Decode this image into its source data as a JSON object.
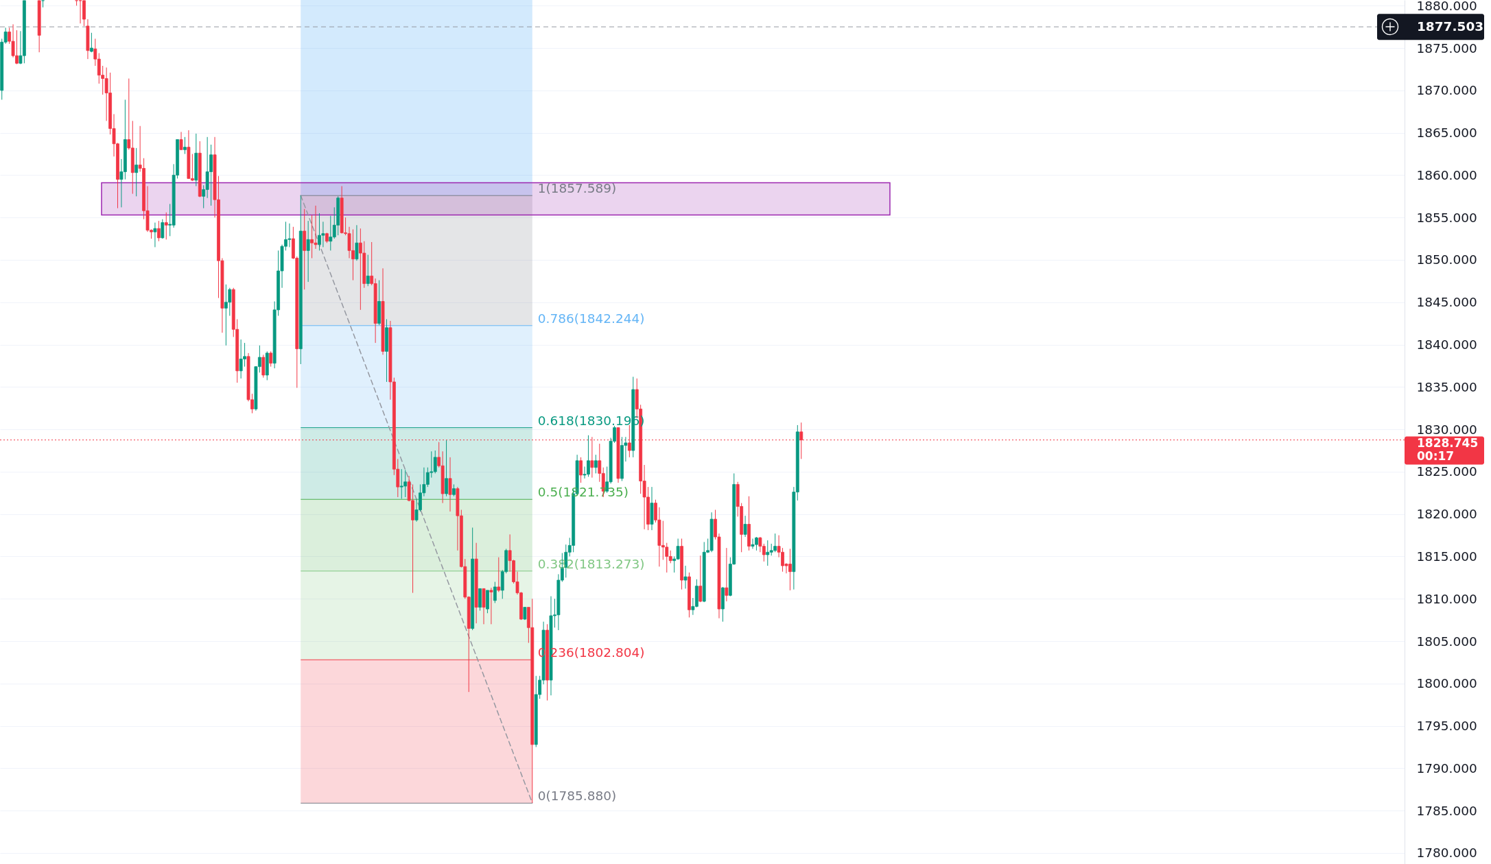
{
  "chart_data": {
    "type": "candlestick",
    "categories": [
      null,
      null,
      null,
      null,
      null,
      null,
      null,
      null,
      null,
      null,
      null,
      null,
      null,
      null,
      null,
      null,
      null,
      null,
      null,
      null,
      null,
      null,
      null,
      null,
      null,
      null,
      null,
      null,
      null,
      null,
      null,
      null,
      null,
      null,
      null,
      null,
      null,
      null,
      null,
      null,
      null,
      null,
      null,
      null,
      null,
      null,
      null,
      null,
      null,
      null,
      null,
      null,
      null,
      null,
      null,
      null,
      null,
      null,
      null,
      null,
      null,
      null,
      null,
      null,
      null,
      null,
      null,
      null,
      null,
      null,
      null,
      null,
      null,
      null,
      null,
      null,
      null,
      null,
      null,
      null,
      null,
      null,
      null,
      null,
      null,
      null,
      null,
      null,
      null,
      null,
      null,
      null,
      null,
      null,
      null,
      null,
      null,
      null,
      null,
      null,
      null,
      null,
      null,
      null,
      null,
      null,
      null,
      null,
      null,
      null,
      null,
      null,
      null,
      null,
      null,
      null,
      null,
      null,
      null,
      null,
      null,
      null,
      null,
      null,
      null,
      null,
      null,
      null,
      null,
      null,
      null,
      null,
      null,
      null,
      null,
      null,
      null,
      null,
      null,
      null,
      null,
      null,
      null,
      null,
      null,
      null,
      null,
      null,
      null,
      null,
      null,
      null,
      null,
      null,
      null,
      null,
      null,
      null,
      null,
      null,
      null,
      null,
      null,
      null,
      null,
      null,
      null,
      null,
      null,
      null,
      null,
      null,
      null,
      null,
      null,
      null,
      null,
      null,
      null,
      null,
      null,
      null,
      null,
      null,
      null,
      null,
      null,
      null,
      null,
      null,
      null,
      null,
      null,
      null,
      null,
      null,
      null,
      null,
      null,
      null,
      null,
      null,
      null,
      null,
      null,
      null,
      null,
      null,
      null,
      null,
      null,
      null,
      null,
      null,
      null,
      null,
      null,
      null,
      null,
      null,
      null,
      null,
      null,
      null,
      null,
      null,
      null,
      null,
      null,
      null,
      null,
      null,
      null,
      null,
      null,
      null,
      null,
      null,
      null,
      null,
      null,
      null,
      null,
      null,
      null,
      null,
      null,
      null,
      null,
      null,
      null,
      null,
      null,
      null,
      null,
      null,
      null,
      null,
      null,
      null,
      null,
      null,
      null,
      null,
      null,
      null,
      null,
      null,
      null,
      null,
      null,
      null,
      null,
      null,
      null,
      null,
      null,
      null,
      null,
      null,
      null,
      null,
      null,
      null,
      null,
      null,
      null,
      null,
      null,
      null,
      null,
      null,
      null,
      null,
      null,
      null,
      null,
      null,
      null,
      null,
      null,
      null,
      null,
      null,
      null,
      null,
      null,
      null,
      null,
      null,
      null,
      null,
      null,
      null,
      null,
      null,
      null,
      null,
      null,
      null,
      null,
      null,
      null,
      null,
      null,
      null,
      null,
      null,
      null,
      null,
      null,
      null,
      null,
      null,
      null,
      null,
      null,
      null,
      null,
      null,
      null,
      null,
      null,
      null,
      null,
      null,
      null,
      null,
      null,
      null,
      null,
      null,
      null,
      null,
      null,
      null,
      null,
      null,
      null,
      null,
      null,
      null,
      null,
      null,
      null,
      null,
      null,
      null,
      null,
      null,
      null,
      null,
      null,
      null,
      null,
      null
    ],
    "ohlc": [
      [
        1870.0,
        1876.1,
        1868.9,
        1875.7
      ],
      [
        1875.7,
        1877.4,
        1875.5,
        1876.9
      ],
      [
        1876.9,
        1877.4,
        1875.5,
        1875.8
      ],
      [
        1875.8,
        1877.8,
        1873.9,
        1874.1
      ],
      [
        1874.1,
        1877.1,
        1873.1,
        1873.2
      ],
      [
        1873.2,
        1877.0,
        1873.1,
        1874.1
      ],
      [
        1874.1,
        1880.6,
        1873.2,
        1880.6
      ],
      null,
      null,
      null,
      [
        1880.6,
        1880.6,
        1874.5,
        1876.5
      ],
      [
        1880.6,
        1880.6,
        1879.8,
        1880.6
      ],
      null,
      null,
      null,
      null,
      null,
      null,
      null,
      null,
      [
        1880.6,
        1880.6,
        1880.0,
        1880.6
      ],
      [
        1880.6,
        1880.6,
        1877.9,
        1880.6
      ],
      [
        1880.6,
        1880.6,
        1877.6,
        1878.4
      ],
      [
        1877.6,
        1878.4,
        1873.7,
        1874.7
      ],
      [
        1874.6,
        1876.8,
        1874.5,
        1875.0
      ],
      [
        1874.9,
        1876.1,
        1872.9,
        1873.7
      ],
      [
        1873.7,
        1874.4,
        1870.8,
        1871.8
      ],
      [
        1871.8,
        1872.9,
        1869.5,
        1871.4
      ],
      [
        1871.4,
        1872.7,
        1866.4,
        1869.7
      ],
      [
        1869.7,
        1872.1,
        1864.8,
        1865.5
      ],
      [
        1865.5,
        1867.2,
        1862.2,
        1863.7
      ],
      [
        1863.7,
        1863.8,
        1856.1,
        1859.5
      ],
      [
        1859.5,
        1861.9,
        1856.2,
        1860.4
      ],
      [
        1860.4,
        1868.9,
        1859.5,
        1864.2
      ],
      [
        1864.2,
        1871.4,
        1863.0,
        1863.2
      ],
      [
        1863.2,
        1866.4,
        1857.8,
        1860.3
      ],
      [
        1860.3,
        1863.2,
        1857.5,
        1861.2
      ],
      [
        1861.2,
        1865.8,
        1860.4,
        1860.8
      ],
      [
        1860.8,
        1862.0,
        1854.8,
        1855.8
      ],
      [
        1855.8,
        1858.7,
        1853.3,
        1853.5
      ],
      [
        1853.5,
        1853.6,
        1852.5,
        1853.3
      ],
      [
        1853.3,
        1854.4,
        1851.5,
        1853.7
      ],
      [
        1853.7,
        1854.6,
        1852.2,
        1852.6
      ],
      [
        1852.6,
        1854.8,
        1852.5,
        1854.4
      ],
      [
        1854.4,
        1855.6,
        1852.4,
        1854.1
      ],
      [
        1854.1,
        1856.6,
        1852.8,
        1854.2
      ],
      [
        1854.1,
        1861.3,
        1853.8,
        1860.0
      ],
      [
        1860.0,
        1864.2,
        1859.6,
        1864.2
      ],
      [
        1864.2,
        1865.1,
        1863.0,
        1863.0
      ],
      [
        1863.0,
        1864.5,
        1862.5,
        1863.3
      ],
      [
        1863.3,
        1865.3,
        1859.6,
        1859.6
      ],
      [
        1859.6,
        1862.5,
        1859.3,
        1859.4
      ],
      [
        1859.4,
        1864.9,
        1858.7,
        1862.6
      ],
      [
        1862.6,
        1864.0,
        1857.4,
        1857.5
      ],
      [
        1857.5,
        1858.8,
        1856.1,
        1858.3
      ],
      [
        1858.3,
        1864.5,
        1857.3,
        1860.4
      ],
      [
        1860.4,
        1863.6,
        1856.4,
        1862.4
      ],
      [
        1862.4,
        1864.5,
        1855.0,
        1857.1
      ],
      [
        1857.1,
        1859.9,
        1845.5,
        1849.9
      ],
      [
        1849.9,
        1850.2,
        1841.4,
        1844.3
      ],
      [
        1844.3,
        1847.1,
        1839.9,
        1845.0
      ],
      [
        1845.0,
        1846.7,
        1843.4,
        1846.5
      ],
      [
        1846.5,
        1846.7,
        1840.9,
        1841.8
      ],
      [
        1841.8,
        1843.0,
        1835.5,
        1836.9
      ],
      [
        1836.9,
        1840.6,
        1836.0,
        1838.3
      ],
      [
        1838.3,
        1840.2,
        1837.4,
        1838.6
      ],
      [
        1838.6,
        1839.0,
        1833.3,
        1833.5
      ],
      [
        1833.5,
        1834.2,
        1831.9,
        1832.4
      ],
      [
        1832.4,
        1837.4,
        1832.2,
        1837.4
      ],
      [
        1837.4,
        1839.9,
        1836.7,
        1838.5
      ],
      [
        1838.5,
        1838.8,
        1836.1,
        1836.4
      ],
      [
        1836.4,
        1839.2,
        1835.8,
        1839.0
      ],
      [
        1839.0,
        1839.2,
        1837.4,
        1837.8
      ],
      [
        1837.8,
        1845.1,
        1837.2,
        1844.1
      ],
      [
        1844.1,
        1851.1,
        1843.4,
        1848.7
      ],
      [
        1848.7,
        1851.8,
        1846.7,
        1851.6
      ],
      [
        1851.6,
        1854.5,
        1851.1,
        1852.4
      ],
      [
        1852.4,
        1854.3,
        1851.5,
        1852.5
      ],
      [
        1852.5,
        1853.9,
        1850.1,
        1850.2
      ],
      [
        1850.2,
        1850.4,
        1834.9,
        1839.5
      ],
      [
        1839.5,
        1857.6,
        1837.7,
        1853.4
      ],
      [
        1853.4,
        1856.0,
        1846.5,
        1851.1
      ],
      [
        1851.1,
        1854.6,
        1847.4,
        1852.4
      ],
      [
        1852.4,
        1855.3,
        1850.2,
        1852.0
      ],
      [
        1852.0,
        1856.4,
        1851.3,
        1851.8
      ],
      [
        1851.8,
        1855.5,
        1851.1,
        1852.9
      ],
      [
        1852.9,
        1854.5,
        1851.5,
        1853.1
      ],
      [
        1853.1,
        1853.2,
        1852.0,
        1852.2
      ],
      [
        1852.2,
        1855.2,
        1851.1,
        1852.7
      ],
      [
        1852.7,
        1856.2,
        1852.5,
        1854.1
      ],
      [
        1854.1,
        1857.5,
        1852.9,
        1857.3
      ],
      [
        1857.3,
        1858.7,
        1853.1,
        1853.2
      ],
      [
        1853.2,
        1855.0,
        1852.9,
        1853.1
      ],
      [
        1853.1,
        1853.9,
        1850.2,
        1851.1
      ],
      [
        1851.1,
        1853.6,
        1847.6,
        1850.1
      ],
      [
        1850.1,
        1854.1,
        1849.9,
        1852.0
      ],
      [
        1852.0,
        1853.7,
        1844.1,
        1850.8
      ],
      [
        1850.8,
        1852.2,
        1846.7,
        1847.2
      ],
      [
        1847.2,
        1850.6,
        1846.9,
        1848.1
      ],
      [
        1848.1,
        1852.1,
        1847.0,
        1847.2
      ],
      [
        1847.2,
        1847.8,
        1840.2,
        1842.5
      ],
      [
        1842.5,
        1847.6,
        1842.3,
        1845.1
      ],
      [
        1845.1,
        1849.0,
        1838.8,
        1839.2
      ],
      [
        1839.2,
        1843.0,
        1835.6,
        1842.0
      ],
      [
        1842.0,
        1842.8,
        1833.5,
        1835.6
      ],
      [
        1835.6,
        1836.1,
        1824.6,
        1825.3
      ],
      [
        1825.3,
        1826.5,
        1822.0,
        1823.2
      ],
      [
        1823.2,
        1825.3,
        1821.8,
        1823.3
      ],
      [
        1823.3,
        1825.2,
        1822.0,
        1823.8
      ],
      [
        1823.8,
        1824.5,
        1821.5,
        1821.6
      ],
      [
        1821.6,
        1823.5,
        1810.7,
        1819.3
      ],
      [
        1819.3,
        1821.8,
        1819.1,
        1820.5
      ],
      [
        1820.5,
        1823.5,
        1820.3,
        1822.5
      ],
      [
        1822.5,
        1825.5,
        1822.1,
        1823.5
      ],
      [
        1823.5,
        1825.5,
        1823.2,
        1824.9
      ],
      [
        1824.9,
        1827.4,
        1824.3,
        1825.0
      ],
      [
        1825.0,
        1827.5,
        1824.8,
        1826.7
      ],
      [
        1826.7,
        1828.5,
        1825.5,
        1825.7
      ],
      [
        1825.7,
        1827.4,
        1821.3,
        1822.4
      ],
      [
        1822.4,
        1828.7,
        1822.1,
        1824.2
      ],
      [
        1824.2,
        1826.7,
        1820.3,
        1822.3
      ],
      [
        1822.3,
        1823.5,
        1822.1,
        1823.0
      ],
      [
        1823.0,
        1823.2,
        1815.7,
        1819.8
      ],
      [
        1819.8,
        1820.5,
        1813.7,
        1813.8
      ],
      [
        1813.8,
        1814.7,
        1810.0,
        1810.2
      ],
      [
        1810.2,
        1810.3,
        1799.0,
        1806.5
      ],
      [
        1806.5,
        1818.4,
        1806.3,
        1814.7
      ],
      [
        1814.7,
        1816.6,
        1807.1,
        1809.0
      ],
      [
        1809.0,
        1811.2,
        1808.6,
        1811.2
      ],
      [
        1811.2,
        1811.2,
        1807.0,
        1809.0
      ],
      [
        1808.8,
        1811.0,
        1808.3,
        1811.0
      ],
      [
        1811.0,
        1811.3,
        1807.0,
        1810.8
      ],
      [
        1809.8,
        1812.0,
        1809.5,
        1811.4
      ],
      [
        1811.4,
        1814.9,
        1810.8,
        1811.0
      ],
      [
        1811.0,
        1813.4,
        1810.0,
        1813.2
      ],
      [
        1813.2,
        1815.9,
        1813.0,
        1815.7
      ],
      [
        1815.7,
        1817.6,
        1813.2,
        1814.5
      ],
      [
        1814.5,
        1814.6,
        1811.8,
        1812.0
      ],
      [
        1812.0,
        1813.2,
        1810.5,
        1810.7
      ],
      [
        1810.7,
        1810.8,
        1807.5,
        1807.6
      ],
      [
        1807.6,
        1809.0,
        1807.5,
        1809.0
      ],
      [
        1809.0,
        1809.0,
        1804.8,
        1806.6
      ],
      [
        1806.6,
        1810.0,
        1785.9,
        1792.8
      ],
      [
        1792.8,
        1800.9,
        1792.5,
        1798.7
      ],
      [
        1798.7,
        1800.9,
        1798.2,
        1800.4
      ],
      [
        1800.4,
        1807.3,
        1799.9,
        1806.3
      ],
      [
        1806.3,
        1807.0,
        1798.0,
        1800.4
      ],
      [
        1800.4,
        1810.3,
        1798.6,
        1808.0
      ],
      [
        1808.0,
        1810.0,
        1806.6,
        1808.1
      ],
      [
        1808.1,
        1812.9,
        1806.3,
        1812.2
      ],
      [
        1812.2,
        1815.4,
        1812.0,
        1813.7
      ],
      [
        1813.7,
        1816.4,
        1812.5,
        1815.5
      ],
      [
        1815.5,
        1817.2,
        1815.0,
        1816.3
      ],
      [
        1816.3,
        1822.9,
        1815.5,
        1822.4
      ],
      [
        1822.4,
        1827.0,
        1822.3,
        1826.3
      ],
      [
        1826.3,
        1826.7,
        1823.7,
        1824.6
      ],
      [
        1824.6,
        1825.6,
        1824.2,
        1824.7
      ],
      [
        1824.7,
        1829.3,
        1824.4,
        1826.3
      ],
      [
        1826.3,
        1829.1,
        1824.3,
        1825.5
      ],
      [
        1825.5,
        1827.0,
        1824.8,
        1826.3
      ],
      [
        1826.3,
        1828.3,
        1823.8,
        1824.8
      ],
      [
        1824.8,
        1825.5,
        1822.0,
        1822.7
      ],
      [
        1822.7,
        1825.6,
        1822.5,
        1823.8
      ],
      [
        1823.8,
        1829.0,
        1823.6,
        1828.6
      ],
      [
        1828.6,
        1830.4,
        1828.4,
        1830.2
      ],
      [
        1830.2,
        1830.2,
        1823.7,
        1824.2
      ],
      [
        1824.2,
        1829.1,
        1823.9,
        1828.1
      ],
      [
        1828.1,
        1829.1,
        1826.2,
        1828.4
      ],
      [
        1828.4,
        1830.5,
        1826.7,
        1827.5
      ],
      [
        1827.5,
        1836.2,
        1826.7,
        1834.7
      ],
      [
        1834.7,
        1836.0,
        1831.3,
        1832.4
      ],
      [
        1832.4,
        1832.9,
        1822.4,
        1823.9
      ],
      [
        1823.9,
        1825.8,
        1818.2,
        1822.0
      ],
      [
        1822.0,
        1823.2,
        1818.1,
        1818.8
      ],
      [
        1818.8,
        1823.2,
        1818.1,
        1821.3
      ],
      [
        1821.3,
        1821.7,
        1819.0,
        1819.3
      ],
      [
        1819.3,
        1820.8,
        1813.8,
        1816.3
      ],
      [
        1816.3,
        1819.2,
        1814.6,
        1816.1
      ],
      [
        1816.1,
        1816.6,
        1813.1,
        1815.0
      ],
      [
        1815.0,
        1815.7,
        1814.2,
        1814.5
      ],
      [
        1814.5,
        1815.0,
        1813.1,
        1814.7
      ],
      [
        1814.7,
        1817.1,
        1814.6,
        1816.2
      ],
      [
        1816.2,
        1817.1,
        1811.1,
        1812.2
      ],
      [
        1812.2,
        1813.9,
        1811.2,
        1812.6
      ],
      [
        1812.6,
        1813.1,
        1807.8,
        1808.7
      ],
      [
        1808.7,
        1810.1,
        1808.1,
        1809.1
      ],
      [
        1809.1,
        1812.3,
        1809.0,
        1811.5
      ],
      [
        1811.5,
        1815.1,
        1809.6,
        1809.7
      ],
      [
        1809.7,
        1816.7,
        1809.6,
        1815.5
      ],
      [
        1815.5,
        1817.1,
        1815.4,
        1815.7
      ],
      [
        1815.7,
        1820.2,
        1815.5,
        1819.4
      ],
      [
        1819.4,
        1820.5,
        1817.0,
        1817.3
      ],
      [
        1817.3,
        1817.7,
        1807.7,
        1808.8
      ],
      [
        1808.8,
        1811.4,
        1807.3,
        1811.3
      ],
      [
        1811.3,
        1816.0,
        1809.7,
        1810.4
      ],
      [
        1810.4,
        1814.9,
        1810.3,
        1814.1
      ],
      [
        1814.1,
        1824.8,
        1814.0,
        1823.5
      ],
      [
        1823.5,
        1823.8,
        1819.7,
        1820.9
      ],
      [
        1820.9,
        1821.3,
        1815.5,
        1817.6
      ],
      [
        1817.6,
        1819.8,
        1817.3,
        1818.8
      ],
      [
        1818.8,
        1822.1,
        1815.7,
        1816.2
      ],
      [
        1816.2,
        1817.1,
        1815.9,
        1816.4
      ],
      [
        1816.4,
        1817.3,
        1815.7,
        1817.2
      ],
      [
        1817.2,
        1817.3,
        1815.5,
        1816.2
      ],
      [
        1816.2,
        1816.5,
        1814.4,
        1815.2
      ],
      [
        1815.2,
        1816.9,
        1813.9,
        1815.5
      ],
      [
        1815.5,
        1816.5,
        1815.1,
        1815.7
      ],
      [
        1815.7,
        1817.7,
        1815.5,
        1816.2
      ],
      [
        1816.2,
        1817.5,
        1814.9,
        1815.5
      ],
      [
        1815.5,
        1816.0,
        1813.2,
        1813.9
      ],
      [
        1814.1,
        1814.2,
        1813.0,
        1813.9
      ],
      [
        1814.1,
        1815.9,
        1811.0,
        1813.2
      ],
      [
        1813.2,
        1823.2,
        1811.1,
        1822.6
      ],
      [
        1822.6,
        1830.5,
        1821.6,
        1829.7
      ],
      [
        1829.7,
        1830.8,
        1826.5,
        1828.745
      ],
      null,
      null,
      null,
      null,
      null,
      null,
      null,
      null,
      null,
      null,
      null,
      null,
      null,
      null,
      null,
      null,
      null,
      null,
      null,
      null,
      null,
      null,
      null,
      null,
      null,
      null,
      null,
      null,
      null,
      null,
      null,
      null,
      null,
      null,
      null,
      null,
      null,
      null,
      null,
      null,
      null,
      null,
      null,
      null,
      null,
      null,
      null,
      null,
      null,
      null,
      null,
      null,
      null,
      null,
      null,
      null,
      null,
      null,
      null,
      null,
      null,
      null,
      null,
      null,
      null,
      null,
      null,
      null,
      null,
      null,
      null,
      null,
      null,
      null,
      null,
      null,
      null,
      null,
      null,
      null,
      null,
      null,
      null,
      null,
      null,
      null,
      null,
      null,
      null,
      null,
      null,
      null,
      null,
      null,
      null,
      null,
      null,
      null,
      null,
      null,
      null,
      null,
      null,
      null,
      null,
      null,
      null,
      null,
      null,
      null,
      null,
      null,
      null,
      null,
      null,
      null,
      null,
      null,
      null,
      null,
      null,
      null,
      null,
      null,
      null,
      null,
      null,
      null,
      null,
      null,
      null,
      null,
      null,
      null,
      null,
      null,
      null,
      null,
      null,
      null,
      null,
      null,
      null,
      null,
      null,
      null,
      null,
      null,
      null,
      null,
      null,
      null,
      null,
      null,
      null,
      null,
      null,
      null,
      null,
      null,
      null
    ],
    "colors": [
      "#089981",
      "#089981",
      "#f23645",
      "#f23645",
      "#f23645",
      "#089981",
      "#089981",
      null,
      null,
      null,
      "#f23645",
      "#089981",
      null,
      null,
      null,
      null,
      null,
      null,
      null,
      null,
      "#f23645",
      "#f23645",
      "#f23645",
      "#f23645",
      "#089981",
      "#f23645",
      "#f23645",
      "#f23645",
      "#f23645",
      "#f23645",
      "#f23645",
      "#f23645",
      "#089981",
      "#089981",
      "#f23645",
      "#f23645",
      "#089981",
      "#f23645",
      "#f23645",
      "#f23645",
      "#f23645",
      "#089981",
      "#f23645",
      "#089981",
      "#f23645",
      "#089981",
      "#089981",
      "#089981",
      "#f23645",
      "#089981",
      "#f23645",
      "#f23645",
      "#089981",
      "#f23645",
      "#089981",
      "#089981",
      "#089981",
      "#f23645",
      "#f23645",
      "#f23645",
      "#089981",
      "#089981",
      "#f23645",
      "#f23645",
      "#089981",
      "#089981",
      "#f23645",
      "#f23645",
      "#089981",
      "#089981",
      "#f23645",
      "#089981",
      "#f23645",
      "#089981",
      "#089981",
      "#089981",
      "#089981",
      "#089981",
      "#f23645",
      "#f23645",
      "#089981",
      "#f23645",
      "#089981",
      "#f23645",
      "#f23645",
      "#089981",
      "#089981",
      "#f23645",
      "#089981",
      "#089981",
      "#089981",
      "#f23645",
      "#f23645",
      "#f23645",
      "#f23645",
      "#089981",
      "#f23645",
      "#f23645",
      "#089981",
      "#f23645",
      "#f23645",
      "#089981",
      "#f23645",
      "#089981",
      "#f23645",
      "#f23645",
      "#f23645",
      "#089981",
      "#089981",
      "#f23645",
      "#f23645",
      "#089981",
      "#089981",
      "#089981",
      "#089981",
      "#089981",
      "#089981",
      "#f23645",
      "#f23645",
      "#089981",
      "#f23645",
      "#089981",
      "#f23645",
      "#f23645",
      "#f23645",
      "#f23645",
      "#089981",
      "#f23645",
      "#089981",
      "#f23645",
      "#089981",
      "#f23645",
      "#089981",
      "#f23645",
      "#089981",
      "#089981",
      "#f23645",
      "#f23645",
      "#f23645",
      "#f23645",
      "#089981",
      "#f23645",
      "#f23645",
      "#089981",
      "#089981",
      "#089981",
      "#f23645",
      "#089981",
      "#089981",
      "#089981",
      "#089981",
      "#089981",
      "#089981",
      "#089981",
      "#089981",
      "#f23645",
      "#089981",
      "#089981",
      "#f23645",
      "#089981",
      "#f23645",
      "#f23645",
      "#089981",
      "#089981",
      "#089981",
      "#f23645",
      "#089981",
      "#089981",
      "#f23645",
      "#089981",
      "#f23645",
      "#f23645",
      "#f23645",
      "#f23645",
      "#089981",
      "#f23645",
      "#f23645",
      "#f23645",
      "#f23645",
      "#f23645",
      "#089981",
      "#089981",
      "#f23645",
      "#089981",
      "#f23645",
      "#089981",
      "#089981",
      "#f23645",
      "#089981",
      "#089981",
      "#089981",
      "#f23645",
      "#f23645",
      "#089981",
      "#f23645",
      "#089981",
      "#089981",
      "#f23645",
      "#f23645",
      "#089981",
      "#f23645",
      "#089981",
      "#089981",
      "#f23645",
      "#f23645",
      "#089981",
      "#089981",
      "#089981",
      "#f23645",
      "#f23645",
      "#f23645",
      "#f23645",
      "#089981",
      "#089981",
      "#f23645",
      null,
      null,
      null,
      null,
      null,
      null,
      null,
      null,
      null,
      null,
      null,
      null,
      null,
      null,
      null,
      null,
      null,
      null,
      null,
      null,
      null,
      null,
      null,
      null,
      null,
      null,
      null,
      null,
      null,
      null,
      null,
      null,
      null,
      null,
      null,
      null,
      null,
      null,
      null,
      null,
      null,
      null,
      null,
      null,
      null,
      null,
      null,
      null,
      null,
      null,
      null,
      null,
      null,
      null,
      null,
      null,
      null,
      null,
      null,
      null,
      null,
      null,
      null,
      null,
      null,
      null,
      null,
      null,
      null,
      null,
      null,
      null,
      null,
      null,
      null,
      null,
      null,
      null,
      null,
      null,
      null,
      null,
      null,
      null,
      null,
      null,
      null,
      null,
      null,
      null,
      null,
      null,
      null,
      null,
      null,
      null,
      null,
      null,
      null,
      null,
      null,
      null,
      null,
      null,
      null,
      null,
      null,
      null,
      null,
      null,
      null,
      null,
      null,
      null,
      null,
      null,
      null,
      null,
      null,
      null,
      null,
      null,
      null,
      null,
      null,
      null,
      null,
      null,
      null,
      null,
      null,
      null,
      null,
      null,
      null,
      null,
      null,
      null,
      null,
      null,
      null,
      null,
      null,
      null,
      null,
      null,
      null,
      null,
      null,
      null,
      null,
      null,
      null,
      null,
      null,
      null,
      null,
      null,
      null,
      null,
      null
    ],
    "series": [
      {
        "type": "line",
        "color": "#9598a1",
        "line_style": "dashed",
        "values": [
          null,
          null,
          null,
          null,
          null,
          null,
          null,
          null,
          null,
          null,
          null,
          null,
          null,
          null,
          null,
          null,
          null,
          null,
          null,
          null,
          null,
          null,
          null,
          null,
          null,
          null,
          null,
          null,
          null,
          null,
          null,
          null,
          null,
          null,
          null,
          null,
          null,
          null,
          null,
          null,
          null,
          null,
          null,
          null,
          null,
          null,
          null,
          null,
          null,
          null,
          null,
          null,
          null,
          null,
          null,
          null,
          null,
          null,
          null,
          null,
          null,
          null,
          null,
          null,
          null,
          null,
          null,
          null,
          null,
          null,
          null,
          null,
          null,
          null,
          null,
          null,
          null,
          null,
          null,
          null,
          1857.6,
          null,
          null,
          null,
          null,
          null,
          null,
          null,
          null,
          null,
          null,
          null,
          null,
          null,
          null,
          null,
          null,
          null,
          null,
          null,
          null,
          null,
          null,
          null,
          null,
          null,
          null,
          null,
          null,
          null,
          null,
          null,
          null,
          null,
          null,
          null,
          null,
          null,
          null,
          null,
          null,
          null,
          null,
          null,
          null,
          null,
          null,
          null,
          null,
          null,
          null,
          null,
          null,
          null,
          null,
          null,
          null,
          null,
          null,
          null,
          null,
          null,
          1785.9,
          null,
          null,
          null,
          null,
          null,
          null,
          null,
          null,
          null,
          null,
          null,
          null,
          null,
          null,
          null,
          null,
          null,
          null,
          null,
          null,
          null,
          null,
          null,
          null,
          null,
          null,
          null,
          null,
          null,
          null,
          null,
          null,
          null,
          null,
          null,
          null,
          null,
          null,
          null,
          null,
          null,
          null,
          null,
          null,
          null,
          null,
          null,
          null,
          null,
          null,
          null,
          null,
          null,
          null,
          null,
          null,
          null,
          null,
          null,
          null,
          null,
          null,
          null,
          null,
          null,
          null,
          null,
          null,
          null,
          null,
          null,
          null,
          null,
          null,
          null,
          null,
          null,
          null,
          null,
          null,
          null,
          null,
          null,
          null,
          null,
          null,
          null,
          null,
          null,
          null,
          null,
          null,
          null,
          null,
          null,
          null,
          null,
          null,
          null,
          null,
          null,
          null,
          null,
          null,
          null,
          null,
          null,
          null,
          null,
          null,
          null,
          null,
          null,
          null,
          null,
          null,
          null,
          null,
          null,
          null,
          null,
          null,
          null,
          null,
          null,
          null,
          null,
          null,
          null,
          null,
          null,
          null,
          null,
          null,
          null,
          null,
          null,
          null,
          null,
          null,
          null,
          null,
          null,
          null,
          null,
          null,
          null,
          null,
          null,
          null,
          null,
          null,
          null,
          null,
          null,
          null,
          null,
          null,
          null,
          null,
          null,
          null,
          null,
          null,
          null,
          null,
          null,
          null,
          null,
          null,
          null,
          null,
          null,
          null,
          null,
          null,
          null,
          null,
          null,
          null,
          null,
          null,
          null,
          null,
          null,
          null,
          null,
          null,
          null,
          null,
          null,
          null,
          null,
          null,
          null,
          null,
          null,
          null,
          null,
          null,
          null,
          null,
          null,
          null,
          null,
          null,
          null,
          null,
          null,
          null,
          null,
          null,
          null,
          null,
          null,
          null,
          null,
          null,
          null,
          null,
          null,
          null,
          null,
          null,
          null,
          null,
          null,
          null,
          null,
          null,
          null,
          null,
          null
        ]
      }
    ],
    "ylim": [
      1778.7,
      1880.67
    ],
    "yticks": [
      {
        "value": 1780,
        "label": "1780.000"
      },
      {
        "value": 1785,
        "label": "1785.000"
      },
      {
        "value": 1790,
        "label": "1790.000"
      },
      {
        "value": 1795,
        "label": "1795.000"
      },
      {
        "value": 1800,
        "label": "1800.000"
      },
      {
        "value": 1805,
        "label": "1805.000"
      },
      {
        "value": 1810,
        "label": "1810.000"
      },
      {
        "value": 1815,
        "label": "1815.000"
      },
      {
        "value": 1820,
        "label": "1820.000"
      },
      {
        "value": 1825,
        "label": "1825.000"
      },
      {
        "value": 1830,
        "label": "1830.000"
      },
      {
        "value": 1835,
        "label": "1835.000"
      },
      {
        "value": 1840,
        "label": "1840.000"
      },
      {
        "value": 1845,
        "label": "1845.000"
      },
      {
        "value": 1850,
        "label": "1850.000"
      },
      {
        "value": 1855,
        "label": "1855.000"
      },
      {
        "value": 1860,
        "label": "1860.000"
      },
      {
        "value": 1865,
        "label": "1865.000"
      },
      {
        "value": 1870,
        "label": "1870.000"
      },
      {
        "value": 1875,
        "label": "1875.000"
      },
      {
        "value": 1880,
        "label": "1880.000"
      }
    ],
    "grid": "y",
    "tick_labels": "y",
    "ref_lines": [
      {
        "axis": "y",
        "value": 1877.503,
        "label": "1877.503",
        "color": "#9598a1",
        "line_style": "dashed"
      },
      {
        "axis": "y",
        "value": 1828.745,
        "label": "1828.745\n00:17",
        "color": "#f23645",
        "line_style": "dotted"
      },
      {
        "axis": "y",
        "value": 1857.589,
        "label": "1(1857.589)",
        "color": "#787b86",
        "line_style": "solid"
      },
      {
        "axis": "y",
        "value": 1842.244,
        "label": "0.786(1842.244)",
        "color": "#64b5f6",
        "line_style": "solid"
      },
      {
        "axis": "y",
        "value": 1830.196,
        "label": "0.618(1830.196)",
        "color": "#089981",
        "line_style": "solid"
      },
      {
        "axis": "y",
        "value": 1821.735,
        "label": "0.5(1821.735)",
        "color": "#4caf50",
        "line_style": "solid"
      },
      {
        "axis": "y",
        "value": 1813.273,
        "label": "0.382(1813.273)",
        "color": "#81c784",
        "line_style": "solid"
      },
      {
        "axis": "y",
        "value": 1802.804,
        "label": "0.236(1802.804)",
        "color": "#f23645",
        "line_style": "solid"
      },
      {
        "axis": "y",
        "value": 1785.88,
        "label": "0(1785.880)",
        "color": "#787b86",
        "line_style": "solid"
      }
    ],
    "bands": [
      {
        "axis": "y",
        "from": 1855.3,
        "to": 1859.1,
        "color": "#9c27b0"
      },
      {
        "axis": "y",
        "from": 1857.589,
        "to": 1880.67,
        "color": "#2196f3"
      },
      {
        "axis": "y",
        "from": 1842.244,
        "to": 1857.589,
        "color": "#787b86"
      },
      {
        "axis": "y",
        "from": 1830.196,
        "to": 1842.244,
        "color": "#64b5f6"
      },
      {
        "axis": "y",
        "from": 1821.735,
        "to": 1830.196,
        "color": "#089981"
      },
      {
        "axis": "y",
        "from": 1813.273,
        "to": 1821.735,
        "color": "#4caf50"
      },
      {
        "axis": "y",
        "from": 1802.804,
        "to": 1813.273,
        "color": "#81c784"
      },
      {
        "axis": "y",
        "from": 1785.88,
        "to": 1802.804,
        "color": "#f23645"
      }
    ]
  }
}
